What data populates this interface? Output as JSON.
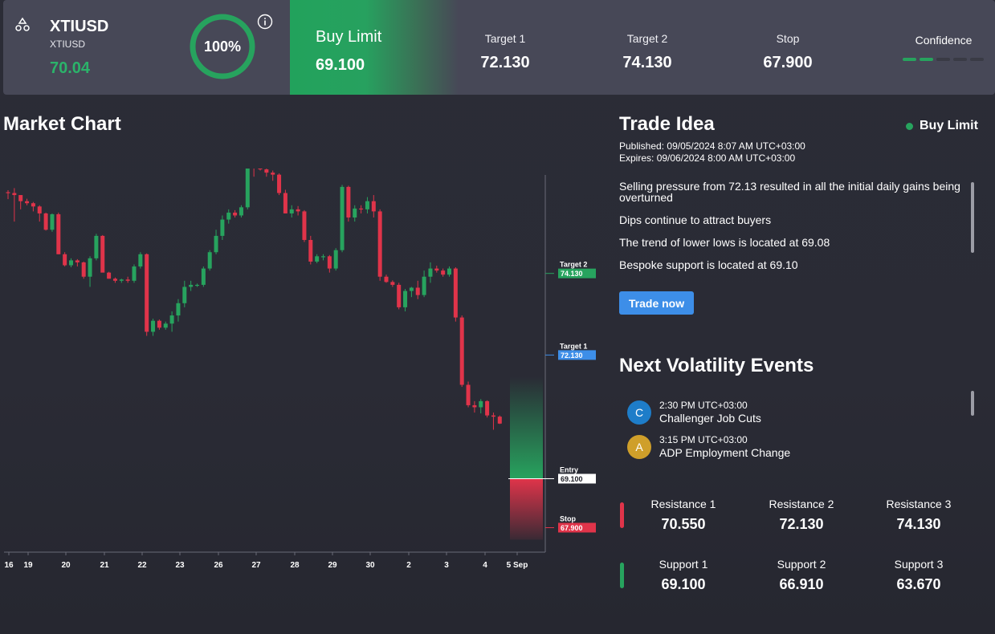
{
  "colors": {
    "green": "#27a35e",
    "red": "#e0344a",
    "blue": "#3d8ee8",
    "panel": "#474857"
  },
  "header": {
    "symbol": "XTIUSD",
    "symbol_sub": "XTIUSD",
    "price": "70.04",
    "probability": "100%",
    "action": "Buy Limit",
    "entry": "69.100",
    "target1_label": "Target 1",
    "target1": "72.130",
    "target2_label": "Target 2",
    "target2": "74.130",
    "stop_label": "Stop",
    "stop": "67.900",
    "confidence_label": "Confidence",
    "confidence_level": 2,
    "confidence_max": 5,
    "icon": "instrument-icon",
    "info_icon": "info-icon"
  },
  "market_chart": {
    "title": "Market Chart"
  },
  "chart_data": {
    "type": "candlestick",
    "x_ticks": [
      "16",
      "19",
      "20",
      "21",
      "22",
      "23",
      "26",
      "27",
      "28",
      "29",
      "30",
      "2",
      "3",
      "4",
      "5 Sep"
    ],
    "ylim": [
      67.3,
      76.7
    ],
    "levels": [
      {
        "name": "Target 2",
        "value": 74.13,
        "label": "74.130",
        "color": "#27a35e"
      },
      {
        "name": "Target 1",
        "value": 72.13,
        "label": "72.130",
        "color": "#3d8ee8"
      },
      {
        "name": "Entry",
        "value": 69.1,
        "label": "69.100",
        "color": "#ffffff"
      },
      {
        "name": "Stop",
        "value": 67.9,
        "label": "67.900",
        "color": "#e0344a"
      }
    ],
    "candles": [
      [
        76.12,
        76.17,
        75.95,
        76.1
      ],
      [
        76.1,
        76.22,
        75.4,
        76.05
      ],
      [
        76.05,
        76.05,
        75.7,
        75.9
      ],
      [
        75.9,
        75.96,
        75.8,
        75.85
      ],
      [
        75.85,
        75.88,
        75.65,
        75.77
      ],
      [
        75.77,
        75.8,
        75.4,
        75.6
      ],
      [
        75.6,
        75.62,
        75.18,
        75.2
      ],
      [
        75.2,
        75.6,
        75.15,
        75.58
      ],
      [
        75.58,
        75.62,
        74.6,
        74.6
      ],
      [
        74.6,
        74.65,
        74.3,
        74.33
      ],
      [
        74.33,
        74.5,
        74.28,
        74.45
      ],
      [
        74.45,
        74.48,
        74.3,
        74.4
      ],
      [
        74.4,
        74.42,
        74.0,
        74.05
      ],
      [
        74.05,
        74.55,
        73.8,
        74.5
      ],
      [
        74.5,
        75.1,
        74.45,
        75.05
      ],
      [
        75.05,
        75.07,
        74.2,
        74.15
      ],
      [
        74.15,
        74.17,
        74.0,
        74.0
      ],
      [
        74.0,
        74.03,
        73.9,
        73.95
      ],
      [
        73.95,
        74.0,
        73.9,
        73.98
      ],
      [
        73.98,
        74.05,
        73.9,
        73.95
      ],
      [
        73.95,
        74.35,
        73.9,
        74.3
      ],
      [
        74.3,
        74.65,
        74.25,
        74.6
      ],
      [
        74.6,
        74.62,
        72.6,
        72.7
      ],
      [
        72.7,
        73.02,
        72.6,
        72.97
      ],
      [
        72.97,
        73.0,
        72.75,
        72.8
      ],
      [
        72.8,
        72.95,
        72.75,
        72.9
      ],
      [
        72.9,
        73.2,
        72.7,
        73.1
      ],
      [
        73.1,
        73.5,
        72.95,
        73.4
      ],
      [
        73.4,
        73.95,
        73.3,
        73.8
      ],
      [
        73.8,
        73.95,
        73.7,
        73.85
      ],
      [
        73.85,
        73.88,
        73.8,
        73.85
      ],
      [
        73.85,
        74.3,
        73.8,
        74.25
      ],
      [
        74.25,
        74.7,
        74.2,
        74.65
      ],
      [
        74.65,
        75.2,
        74.6,
        75.05
      ],
      [
        75.05,
        75.55,
        74.95,
        75.45
      ],
      [
        75.45,
        75.7,
        75.35,
        75.62
      ],
      [
        75.62,
        75.68,
        75.5,
        75.55
      ],
      [
        75.55,
        75.8,
        75.5,
        75.75
      ],
      [
        75.75,
        76.9,
        75.7,
        76.85
      ],
      [
        76.85,
        76.92,
        76.5,
        76.75
      ],
      [
        76.75,
        76.8,
        76.65,
        76.68
      ],
      [
        76.68,
        76.72,
        76.5,
        76.6
      ],
      [
        76.6,
        76.65,
        76.4,
        76.55
      ],
      [
        76.55,
        76.58,
        76.05,
        76.1
      ],
      [
        76.1,
        76.18,
        75.6,
        75.6
      ],
      [
        75.6,
        75.8,
        75.5,
        75.7
      ],
      [
        75.7,
        75.78,
        75.55,
        75.65
      ],
      [
        75.65,
        75.68,
        74.9,
        74.95
      ],
      [
        74.95,
        75.05,
        74.35,
        74.42
      ],
      [
        74.42,
        74.6,
        74.38,
        74.55
      ],
      [
        74.55,
        74.6,
        74.45,
        74.55
      ],
      [
        74.55,
        74.58,
        74.15,
        74.25
      ],
      [
        74.25,
        74.75,
        74.2,
        74.7
      ],
      [
        74.7,
        76.3,
        74.65,
        76.25
      ],
      [
        76.25,
        76.28,
        75.4,
        75.5
      ],
      [
        75.5,
        75.8,
        75.4,
        75.72
      ],
      [
        75.72,
        75.8,
        75.6,
        75.7
      ],
      [
        75.7,
        76.0,
        75.6,
        75.9
      ],
      [
        75.9,
        76.05,
        75.5,
        75.65
      ],
      [
        75.65,
        75.7,
        73.95,
        74.05
      ],
      [
        74.05,
        74.1,
        73.9,
        73.92
      ],
      [
        73.92,
        73.96,
        73.8,
        73.85
      ],
      [
        73.85,
        73.9,
        73.25,
        73.3
      ],
      [
        73.3,
        73.75,
        73.2,
        73.7
      ],
      [
        73.7,
        73.8,
        73.55,
        73.78
      ],
      [
        73.78,
        73.95,
        73.5,
        73.6
      ],
      [
        73.6,
        74.2,
        73.55,
        74.05
      ],
      [
        74.05,
        74.4,
        73.9,
        74.25
      ],
      [
        74.25,
        74.32,
        74.15,
        74.2
      ],
      [
        74.2,
        74.25,
        74.05,
        74.1
      ],
      [
        74.1,
        74.3,
        74.05,
        74.25
      ],
      [
        74.25,
        74.28,
        72.95,
        73.05
      ],
      [
        73.05,
        73.1,
        71.35,
        71.4
      ],
      [
        71.4,
        71.48,
        70.85,
        70.9
      ],
      [
        70.9,
        71.0,
        70.72,
        70.85
      ],
      [
        70.85,
        71.05,
        70.7,
        71.0
      ],
      [
        71.0,
        71.02,
        70.6,
        70.65
      ],
      [
        70.65,
        70.72,
        70.3,
        70.62
      ],
      [
        70.62,
        70.65,
        70.44,
        70.45
      ]
    ]
  },
  "trade_idea": {
    "title": "Trade Idea",
    "badge": "Buy Limit",
    "published_label": "Published:",
    "published": "09/05/2024 8:07 AM UTC+03:00",
    "expires_label": "Expires:",
    "expires": "09/06/2024 8:00 AM UTC+03:00",
    "points": [
      "Selling pressure from 72.13 resulted in all the initial daily gains being overturned",
      "Dips continue to attract buyers",
      "The trend of lower lows is located at 69.08",
      "Bespoke support is located at 69.10"
    ],
    "button": "Trade now"
  },
  "volatility": {
    "title": "Next Volatility Events",
    "events": [
      {
        "initial": "C",
        "time": "2:30 PM UTC+03:00",
        "name": "Challenger Job Cuts",
        "color": "#1e7dc9"
      },
      {
        "initial": "A",
        "time": "3:15 PM UTC+03:00",
        "name": "ADP Employment Change",
        "color": "#cf9f2a"
      }
    ]
  },
  "levels": {
    "resistance": [
      {
        "label": "Resistance 1",
        "value": "70.550"
      },
      {
        "label": "Resistance 2",
        "value": "72.130"
      },
      {
        "label": "Resistance 3",
        "value": "74.130"
      }
    ],
    "support": [
      {
        "label": "Support 1",
        "value": "69.100"
      },
      {
        "label": "Support 2",
        "value": "66.910"
      },
      {
        "label": "Support 3",
        "value": "63.670"
      }
    ]
  }
}
